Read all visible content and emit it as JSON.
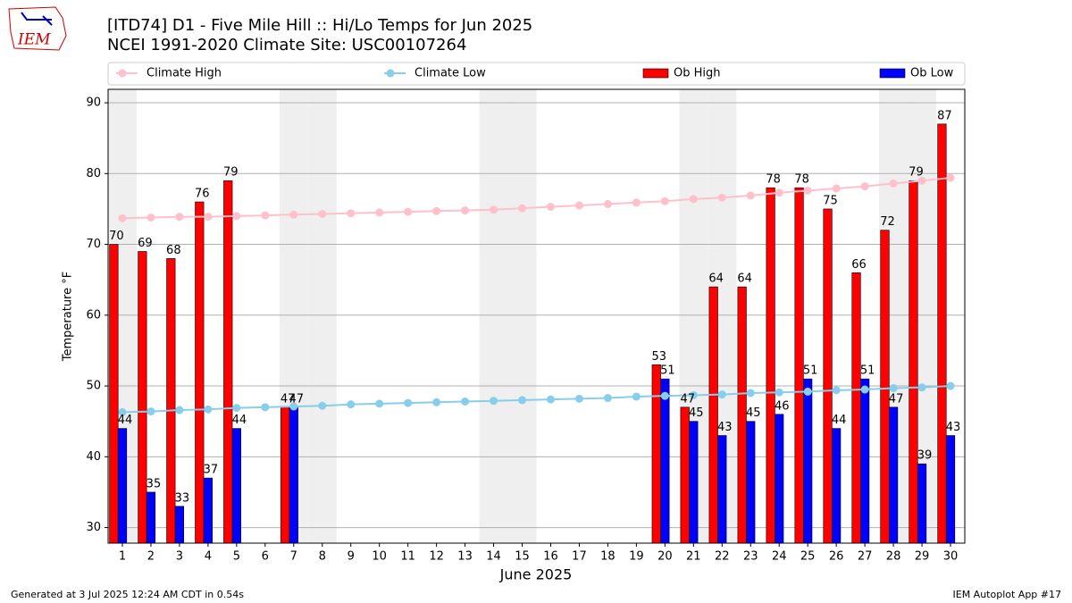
{
  "chart_data": {
    "type": "bar",
    "title": "[ITD74] D1 - Five Mile Hill  :: Hi/Lo Temps for Jun 2025",
    "subtitle": "NCEI 1991-2020 Climate Site: USC00107264",
    "x_label": "June 2025",
    "y_label": "Temperature °F",
    "logo": "IEM",
    "footer_left": "Generated at 3 Jul 2025 12:24 AM CDT in 0.54s",
    "footer_right": "IEM Autoplot App #17",
    "x": [
      1,
      2,
      3,
      4,
      5,
      6,
      7,
      8,
      9,
      10,
      11,
      12,
      13,
      14,
      15,
      16,
      17,
      18,
      19,
      20,
      21,
      22,
      23,
      24,
      25,
      26,
      27,
      28,
      29,
      30
    ],
    "xlim": [
      0.5,
      30.5
    ],
    "xticks": [
      1,
      2,
      3,
      4,
      5,
      6,
      7,
      8,
      9,
      10,
      11,
      12,
      13,
      14,
      15,
      16,
      17,
      18,
      19,
      20,
      21,
      22,
      23,
      24,
      25,
      26,
      27,
      28,
      29,
      30
    ],
    "ylim": [
      27.8,
      91.9
    ],
    "yticks": [
      30,
      40,
      50,
      60,
      70,
      80,
      90
    ],
    "grid": true,
    "legend": "top",
    "shaded_days": [
      1,
      7,
      8,
      14,
      15,
      21,
      22,
      28,
      29
    ],
    "series": [
      {
        "name": "Climate High",
        "kind": "line",
        "color": "#ffc0cb",
        "values": [
          73.7,
          73.8,
          73.9,
          73.9,
          74.0,
          74.1,
          74.2,
          74.3,
          74.4,
          74.5,
          74.6,
          74.7,
          74.8,
          74.9,
          75.1,
          75.3,
          75.5,
          75.7,
          75.9,
          76.1,
          76.4,
          76.6,
          76.9,
          77.3,
          77.6,
          77.9,
          78.2,
          78.6,
          79.0,
          79.4
        ]
      },
      {
        "name": "Climate Low",
        "kind": "line",
        "color": "#87ceeb",
        "values": [
          46.3,
          46.4,
          46.6,
          46.7,
          46.9,
          47.0,
          47.1,
          47.2,
          47.4,
          47.5,
          47.6,
          47.7,
          47.8,
          47.9,
          48.0,
          48.1,
          48.2,
          48.3,
          48.5,
          48.6,
          48.7,
          48.8,
          49.0,
          49.1,
          49.2,
          49.4,
          49.5,
          49.7,
          49.8,
          50.0
        ]
      },
      {
        "name": "Ob High",
        "kind": "bar",
        "color": "#ff0000",
        "values": [
          70,
          69,
          68,
          76,
          79,
          null,
          47,
          null,
          null,
          null,
          null,
          null,
          null,
          null,
          null,
          null,
          null,
          null,
          null,
          53,
          47,
          64,
          64,
          78,
          78,
          75,
          66,
          72,
          79,
          87
        ]
      },
      {
        "name": "Ob Low",
        "kind": "bar",
        "color": "#0000ff",
        "values": [
          44,
          35,
          33,
          37,
          44,
          null,
          47,
          null,
          null,
          null,
          null,
          null,
          null,
          null,
          null,
          null,
          null,
          null,
          null,
          51,
          45,
          43,
          45,
          46,
          51,
          44,
          51,
          47,
          39,
          43
        ]
      }
    ]
  }
}
